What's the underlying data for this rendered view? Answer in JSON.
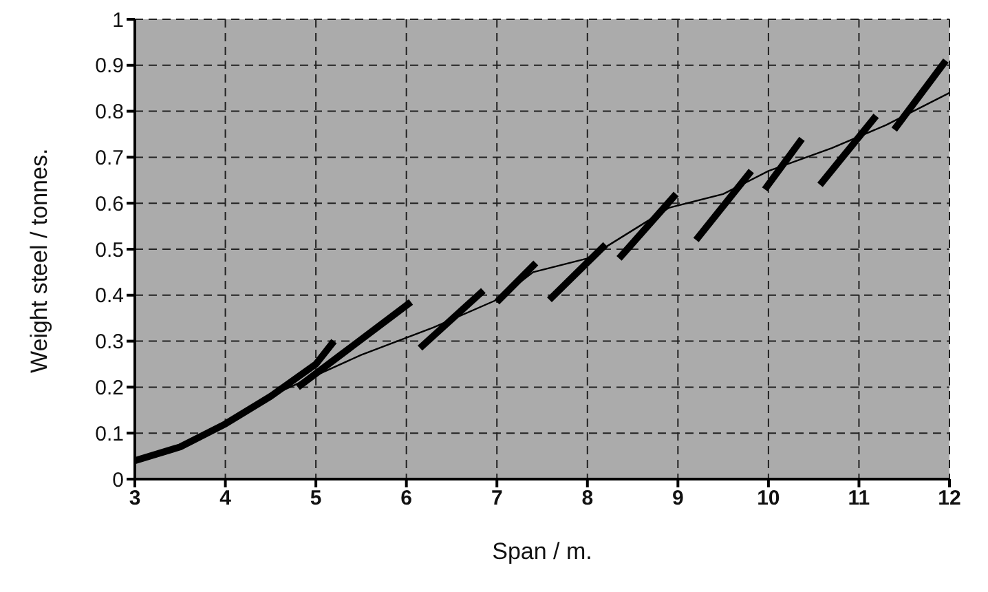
{
  "chart_data": {
    "type": "line",
    "xlabel": "Span / m.",
    "ylabel": "Weight steel / tonnes.",
    "xlim": [
      3,
      12
    ],
    "ylim": [
      0,
      1
    ],
    "xticks": [
      3,
      4,
      5,
      6,
      7,
      8,
      9,
      10,
      11,
      12
    ],
    "yticks": [
      0,
      0.1,
      0.2,
      0.3,
      0.4,
      0.5,
      0.6,
      0.7,
      0.8,
      0.9,
      1
    ],
    "grid": true,
    "line_style": "solid",
    "series": [
      {
        "color": "#000000",
        "x": [
          4.6,
          5.5,
          6.3,
          7.0,
          7.4,
          8.0,
          8.9,
          9.5,
          10.0,
          10.7,
          11.3,
          12.0
        ],
        "values": [
          0.19,
          0.27,
          0.33,
          0.39,
          0.45,
          0.48,
          0.59,
          0.62,
          0.67,
          0.72,
          0.77,
          0.84
        ]
      },
      {
        "color": "#000000",
        "x": [
          3,
          3.5,
          4,
          4.5,
          5,
          5.2
        ],
        "values": [
          0.04,
          0.07,
          0.12,
          0.18,
          0.25,
          0.3
        ]
      },
      {
        "color": "#000000",
        "x": [
          4.8,
          6.05
        ],
        "values": [
          0.2,
          0.385
        ]
      },
      {
        "color": "#000000",
        "x": [
          6.15,
          6.85
        ],
        "values": [
          0.285,
          0.41
        ]
      },
      {
        "color": "#000000",
        "x": [
          7.0,
          7.43
        ],
        "values": [
          0.385,
          0.47
        ]
      },
      {
        "color": "#000000",
        "x": [
          7.58,
          8.2
        ],
        "values": [
          0.39,
          0.51
        ]
      },
      {
        "color": "#000000",
        "x": [
          8.35,
          8.98
        ],
        "values": [
          0.48,
          0.62
        ]
      },
      {
        "color": "#000000",
        "x": [
          9.2,
          9.81
        ],
        "values": [
          0.52,
          0.67
        ]
      },
      {
        "color": "#000000",
        "x": [
          9.96,
          10.37
        ],
        "values": [
          0.63,
          0.74
        ]
      },
      {
        "color": "#000000",
        "x": [
          10.57,
          11.19
        ],
        "values": [
          0.64,
          0.79
        ]
      },
      {
        "color": "#000000",
        "x": [
          11.39,
          11.96
        ],
        "values": [
          0.76,
          0.91
        ]
      }
    ]
  }
}
